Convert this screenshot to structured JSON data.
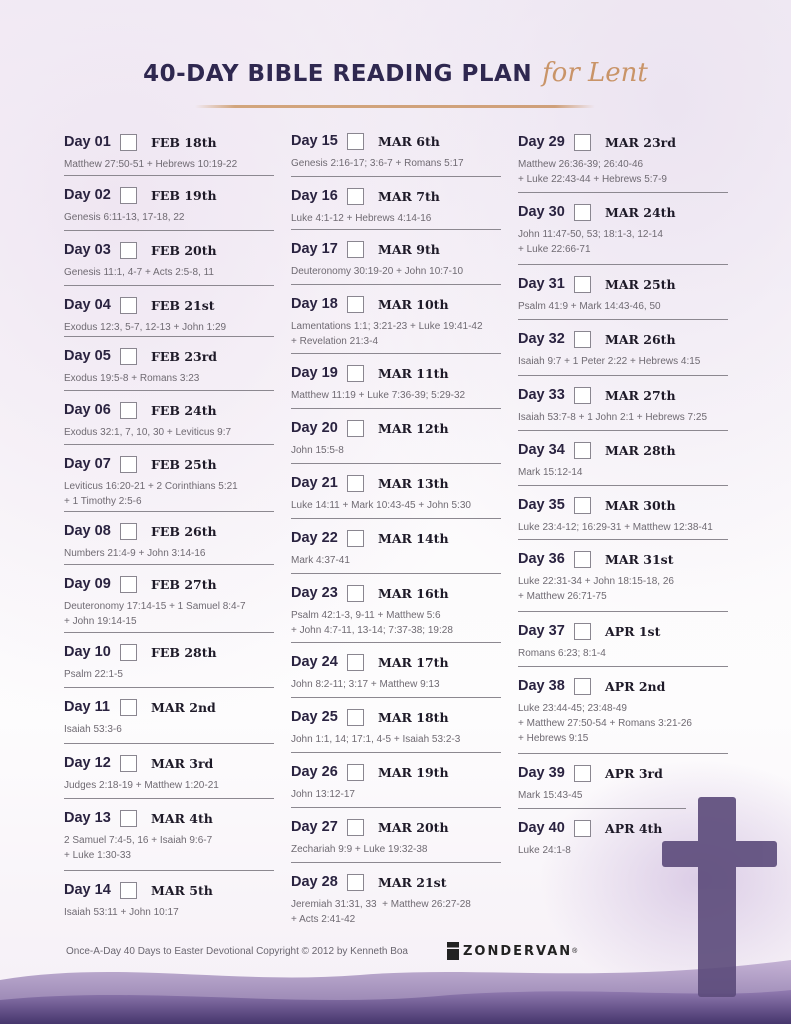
{
  "header": {
    "title": "40-DAY BIBLE READING PLAN",
    "script": "for Lent"
  },
  "colors": {
    "title": "#2f2850",
    "accent": "#c99468",
    "cross": "#5b4a7a"
  },
  "columns": [
    [
      {
        "day": "Day 01",
        "date": "FEB 18th",
        "reading": "Matthew 27:50-51 + Hebrews 10:19-22"
      },
      {
        "day": "Day 02",
        "date": "FEB 19th",
        "reading": "Genesis 6:11-13, 17-18, 22"
      },
      {
        "day": "Day 03",
        "date": "FEB 20th",
        "reading": "Genesis 11:1, 4-7 + Acts 2:5-8, 11"
      },
      {
        "day": "Day 04",
        "date": "FEB 21st",
        "reading": "Exodus 12:3, 5-7, 12-13 + John 1:29"
      },
      {
        "day": "Day 05",
        "date": "FEB 23rd",
        "reading": "Exodus 19:5-8 + Romans 3:23"
      },
      {
        "day": "Day 06",
        "date": "FEB 24th",
        "reading": "Exodus 32:1, 7, 10, 30 + Leviticus 9:7"
      },
      {
        "day": "Day 07",
        "date": "FEB 25th",
        "reading": "Leviticus 16:20-21 + 2 Corinthians 5:21\n+ 1 Timothy 2:5-6"
      },
      {
        "day": "Day 08",
        "date": "FEB 26th",
        "reading": "Numbers 21:4-9 + John 3:14-16"
      },
      {
        "day": "Day 09",
        "date": "FEB 27th",
        "reading": "Deuteronomy 17:14-15 + 1 Samuel 8:4-7\n+ John 19:14-15"
      },
      {
        "day": "Day 10",
        "date": "FEB 28th",
        "reading": "Psalm 22:1-5"
      },
      {
        "day": "Day 11",
        "date": "MAR 2nd",
        "reading": "Isaiah 53:3-6"
      },
      {
        "day": "Day 12",
        "date": "MAR 3rd",
        "reading": "Judges 2:18-19 + Matthew 1:20-21"
      },
      {
        "day": "Day 13",
        "date": "MAR 4th",
        "reading": "2 Samuel 7:4-5, 16 + Isaiah 9:6-7\n+ Luke 1:30-33"
      },
      {
        "day": "Day 14",
        "date": "MAR 5th",
        "reading": "Isaiah 53:11 + John 10:17"
      }
    ],
    [
      {
        "day": "Day 15",
        "date": "MAR 6th",
        "reading": "Genesis 2:16-17; 3:6-7 + Romans 5:17"
      },
      {
        "day": "Day 16",
        "date": "MAR 7th",
        "reading": "Luke 4:1-12 + Hebrews 4:14-16"
      },
      {
        "day": "Day 17",
        "date": "MAR 9th",
        "reading": "Deuteronomy 30:19-20 + John 10:7-10"
      },
      {
        "day": "Day 18",
        "date": "MAR 10th",
        "reading": "Lamentations 1:1; 3:21-23 + Luke 19:41-42\n+ Revelation 21:3-4"
      },
      {
        "day": "Day 19",
        "date": "MAR 11th",
        "reading": "Matthew 11:19 + Luke 7:36-39; 5:29-32"
      },
      {
        "day": "Day 20",
        "date": "MAR 12th",
        "reading": "John 15:5-8"
      },
      {
        "day": "Day 21",
        "date": "MAR 13th",
        "reading": "Luke 14:11 + Mark 10:43-45 + John 5:30"
      },
      {
        "day": "Day 22",
        "date": "MAR 14th",
        "reading": "Mark 4:37-41"
      },
      {
        "day": "Day 23",
        "date": "MAR 16th",
        "reading": "Psalm 42:1-3, 9-11 + Matthew 5:6\n+ John 4:7-11, 13-14; 7:37-38; 19:28"
      },
      {
        "day": "Day 24",
        "date": "MAR 17th",
        "reading": "John 8:2-11; 3:17 + Matthew 9:13"
      },
      {
        "day": "Day 25",
        "date": "MAR 18th",
        "reading": "John 1:1, 14; 17:1, 4-5 + Isaiah 53:2-3"
      },
      {
        "day": "Day 26",
        "date": "MAR 19th",
        "reading": "John 13:12-17"
      },
      {
        "day": "Day 27",
        "date": "MAR 20th",
        "reading": "Zechariah 9:9 + Luke 19:32-38"
      },
      {
        "day": "Day 28",
        "date": "MAR 21st",
        "reading": "Jeremiah 31:31, 33  + Matthew 26:27-28\n+ Acts 2:41-42"
      }
    ],
    [
      {
        "day": "Day 29",
        "date": "MAR 23rd",
        "reading": "Matthew 26:36-39; 26:40-46\n+ Luke 22:43-44 + Hebrews 5:7-9"
      },
      {
        "day": "Day 30",
        "date": "MAR 24th",
        "reading": "John 11:47-50, 53; 18:1-3, 12-14\n+ Luke 22:66-71"
      },
      {
        "day": "Day 31",
        "date": "MAR 25th",
        "reading": "Psalm 41:9 + Mark 14:43-46, 50"
      },
      {
        "day": "Day 32",
        "date": "MAR 26th",
        "reading": "Isaiah 9:7 + 1 Peter 2:22 + Hebrews 4:15"
      },
      {
        "day": "Day 33",
        "date": "MAR 27th",
        "reading": "Isaiah 53:7-8 + 1 John 2:1 + Hebrews 7:25"
      },
      {
        "day": "Day 34",
        "date": "MAR 28th",
        "reading": "Mark 15:12-14"
      },
      {
        "day": "Day 35",
        "date": "MAR 30th",
        "reading": "Luke 23:4-12; 16:29-31 + Matthew 12:38-41"
      },
      {
        "day": "Day 36",
        "date": "MAR 31st",
        "reading": "Luke 22:31-34 + John 18:15-18, 26\n+ Matthew 26:71-75"
      },
      {
        "day": "Day 37",
        "date": "APR 1st",
        "reading": "Romans 6:23; 8:1-4"
      },
      {
        "day": "Day 38",
        "date": "APR 2nd",
        "reading": "Luke 23:44-45; 23:48-49\n+ Matthew 27:50-54 + Romans 3:21-26\n+ Hebrews 9:15"
      },
      {
        "day": "Day 39",
        "date": "APR 3rd",
        "reading": "Mark 15:43-45"
      },
      {
        "day": "Day 40",
        "date": "APR 4th",
        "reading": "Luke 24:1-8"
      }
    ]
  ],
  "footer": {
    "copyright": "Once-A-Day 40 Days to Easter Devotional Copyright © 2012 by Kenneth Boa",
    "publisher": "ZONDERVAN",
    "publisher_mark": "®"
  }
}
